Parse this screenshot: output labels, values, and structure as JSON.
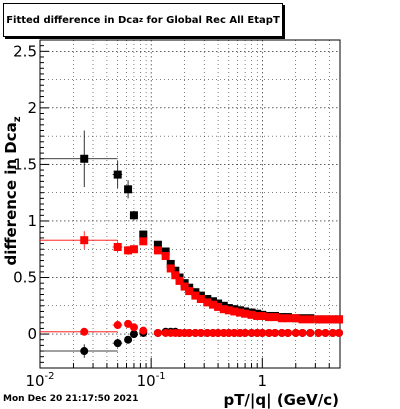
{
  "title": {
    "prefix": "Fitted difference in Dca",
    "subscript": "z",
    "suffix": " for Global Rec All EtapT"
  },
  "timestamp": "Mon Dec 20 21:17:50 2021",
  "chart_data": {
    "type": "scatter",
    "xlabel": "pT/|q| (GeV/c)",
    "ylabel": "difference in Dca",
    "ylabel_subscript": "z",
    "xscale": "log",
    "xlim": [
      0.01,
      5.0
    ],
    "ylim": [
      -0.3,
      2.6
    ],
    "grid": true,
    "xtick_labels": [
      {
        "value": 0.01,
        "label": "10",
        "sup": "-2"
      },
      {
        "value": 0.1,
        "label": "10",
        "sup": "-1"
      },
      {
        "value": 1,
        "label": "1",
        "sup": ""
      }
    ],
    "ytick_labels": [
      {
        "value": 0,
        "label": "0"
      },
      {
        "value": 0.5,
        "label": "0.5"
      },
      {
        "value": 1,
        "label": "1"
      },
      {
        "value": 1.5,
        "label": "1.5"
      },
      {
        "value": 2,
        "label": "2"
      },
      {
        "value": 2.5,
        "label": "2.5"
      }
    ],
    "series": [
      {
        "color": "#000000",
        "marker": "square",
        "x": [
          0.025,
          0.05,
          0.062,
          0.07,
          0.085,
          0.115,
          0.135,
          0.15,
          0.165,
          0.18,
          0.2,
          0.22,
          0.25,
          0.28,
          0.32,
          0.36,
          0.4,
          0.45,
          0.5,
          0.56,
          0.63,
          0.7,
          0.8,
          0.9,
          1.0,
          1.15,
          1.3,
          1.5,
          1.7,
          2.0,
          2.3,
          2.7,
          3.2,
          3.7,
          4.3,
          4.9
        ],
        "y": [
          1.55,
          1.41,
          1.28,
          1.05,
          0.88,
          0.79,
          0.73,
          0.62,
          0.56,
          0.5,
          0.45,
          0.41,
          0.37,
          0.34,
          0.31,
          0.29,
          0.27,
          0.25,
          0.23,
          0.22,
          0.21,
          0.2,
          0.19,
          0.18,
          0.17,
          0.16,
          0.16,
          0.15,
          0.15,
          0.14,
          0.14,
          0.14,
          0.13,
          0.13,
          0.13,
          0.13
        ],
        "yerr": [
          0.25,
          0.12,
          0.08,
          0.04,
          0.03,
          0.02,
          0.02,
          0.015,
          0.01,
          0.01,
          0.01,
          0.01,
          0.01,
          0.01,
          0.01,
          0.01,
          0.01,
          0.01,
          0.01,
          0.01,
          0.01,
          0.01,
          0.01,
          0.01,
          0.01,
          0.01,
          0.01,
          0.01,
          0.01,
          0.01,
          0.01,
          0.01,
          0.01,
          0.01,
          0.01,
          0.01
        ],
        "xerr_lo": [
          0.015,
          0.005,
          0.004,
          0.004,
          0.006,
          0.007,
          0.008,
          0.007,
          0.007,
          0.008,
          0.01,
          0.01,
          0.012,
          0.014,
          0.016,
          0.018,
          0.02,
          0.022,
          0.025,
          0.028,
          0.03,
          0.035,
          0.04,
          0.045,
          0.05,
          0.06,
          0.07,
          0.08,
          0.09,
          0.1,
          0.12,
          0.14,
          0.16,
          0.18,
          0.2,
          0.2
        ],
        "xerr_hi": [
          0.025,
          0.005,
          0.004,
          0.004,
          0.006,
          0.007,
          0.008,
          0.007,
          0.007,
          0.008,
          0.01,
          0.01,
          0.012,
          0.014,
          0.016,
          0.018,
          0.02,
          0.022,
          0.025,
          0.028,
          0.03,
          0.035,
          0.04,
          0.045,
          0.05,
          0.06,
          0.07,
          0.08,
          0.09,
          0.1,
          0.12,
          0.14,
          0.16,
          0.18,
          0.2,
          0.1
        ]
      },
      {
        "color": "#ff0000",
        "marker": "square",
        "x": [
          0.025,
          0.05,
          0.062,
          0.07,
          0.085,
          0.115,
          0.135,
          0.15,
          0.165,
          0.18,
          0.2,
          0.22,
          0.25,
          0.28,
          0.32,
          0.36,
          0.4,
          0.45,
          0.5,
          0.56,
          0.63,
          0.7,
          0.8,
          0.9,
          1.0,
          1.15,
          1.3,
          1.5,
          1.7,
          2.0,
          2.3,
          2.7,
          3.2,
          3.7,
          4.3,
          4.9
        ],
        "y": [
          0.83,
          0.77,
          0.74,
          0.75,
          0.82,
          0.74,
          0.69,
          0.58,
          0.52,
          0.47,
          0.42,
          0.38,
          0.34,
          0.31,
          0.28,
          0.26,
          0.24,
          0.22,
          0.21,
          0.2,
          0.19,
          0.18,
          0.17,
          0.16,
          0.16,
          0.15,
          0.15,
          0.14,
          0.14,
          0.14,
          0.13,
          0.13,
          0.13,
          0.13,
          0.13,
          0.13
        ],
        "yerr": [
          0.08,
          0.05,
          0.04,
          0.03,
          0.02,
          0.02,
          0.02,
          0.015,
          0.01,
          0.01,
          0.01,
          0.01,
          0.01,
          0.01,
          0.01,
          0.01,
          0.01,
          0.01,
          0.01,
          0.01,
          0.01,
          0.01,
          0.01,
          0.01,
          0.01,
          0.01,
          0.01,
          0.01,
          0.01,
          0.01,
          0.01,
          0.01,
          0.01,
          0.01,
          0.01,
          0.01
        ],
        "xerr_lo": [
          0.015,
          0.005,
          0.004,
          0.004,
          0.006,
          0.007,
          0.008,
          0.007,
          0.007,
          0.008,
          0.01,
          0.01,
          0.012,
          0.014,
          0.016,
          0.018,
          0.02,
          0.022,
          0.025,
          0.028,
          0.03,
          0.035,
          0.04,
          0.045,
          0.05,
          0.06,
          0.07,
          0.08,
          0.09,
          0.1,
          0.12,
          0.14,
          0.16,
          0.18,
          0.2,
          0.2
        ],
        "xerr_hi": [
          0.025,
          0.005,
          0.004,
          0.004,
          0.006,
          0.007,
          0.008,
          0.007,
          0.007,
          0.008,
          0.01,
          0.01,
          0.012,
          0.014,
          0.016,
          0.018,
          0.02,
          0.022,
          0.025,
          0.028,
          0.03,
          0.035,
          0.04,
          0.045,
          0.05,
          0.06,
          0.07,
          0.08,
          0.09,
          0.1,
          0.12,
          0.14,
          0.16,
          0.18,
          0.2,
          0.1
        ]
      },
      {
        "color": "#000000",
        "marker": "circle",
        "x": [
          0.025,
          0.05,
          0.062,
          0.07,
          0.085,
          0.115,
          0.135,
          0.15,
          0.165,
          0.18,
          0.2,
          0.22,
          0.25,
          0.28,
          0.32,
          0.36,
          0.4,
          0.45,
          0.5,
          0.56,
          0.63,
          0.7,
          0.8,
          0.9,
          1.0,
          1.15,
          1.3,
          1.5,
          1.7,
          2.0,
          2.3,
          2.7,
          3.2,
          3.7,
          4.3,
          4.9
        ],
        "y": [
          -0.15,
          -0.08,
          -0.05,
          0.0,
          0.01,
          0.01,
          0.02,
          0.02,
          0.02,
          0.01,
          0.01,
          0.01,
          0.01,
          0.01,
          0.01,
          0.01,
          0.01,
          0.01,
          0.01,
          0.01,
          0.01,
          0.01,
          0.01,
          0.01,
          0.01,
          0.01,
          0.01,
          0.01,
          0.01,
          0.01,
          0.01,
          0.01,
          0.01,
          0.01,
          0.01,
          0.01
        ],
        "yerr": [
          0.06,
          0.04,
          0.03,
          0.02,
          0.02,
          0.01,
          0.01,
          0.01,
          0.01,
          0.01,
          0.01,
          0.01,
          0.01,
          0.01,
          0.01,
          0.01,
          0.01,
          0.01,
          0.01,
          0.01,
          0.01,
          0.01,
          0.01,
          0.01,
          0.01,
          0.01,
          0.01,
          0.01,
          0.01,
          0.01,
          0.01,
          0.01,
          0.01,
          0.01,
          0.01,
          0.01
        ],
        "xerr_lo": [
          0.015,
          0.005,
          0.004,
          0.004,
          0.006,
          0.007,
          0.008,
          0.007,
          0.007,
          0.008,
          0.01,
          0.01,
          0.012,
          0.014,
          0.016,
          0.018,
          0.02,
          0.022,
          0.025,
          0.028,
          0.03,
          0.035,
          0.04,
          0.045,
          0.05,
          0.06,
          0.07,
          0.08,
          0.09,
          0.1,
          0.12,
          0.14,
          0.16,
          0.18,
          0.2,
          0.2
        ],
        "xerr_hi": [
          0.025,
          0.005,
          0.004,
          0.004,
          0.006,
          0.007,
          0.008,
          0.007,
          0.007,
          0.008,
          0.01,
          0.01,
          0.012,
          0.014,
          0.016,
          0.018,
          0.02,
          0.022,
          0.025,
          0.028,
          0.03,
          0.035,
          0.04,
          0.045,
          0.05,
          0.06,
          0.07,
          0.08,
          0.09,
          0.1,
          0.12,
          0.14,
          0.16,
          0.18,
          0.2,
          0.1
        ]
      },
      {
        "color": "#ff0000",
        "marker": "circle",
        "x": [
          0.025,
          0.05,
          0.062,
          0.07,
          0.085,
          0.115,
          0.135,
          0.15,
          0.165,
          0.18,
          0.2,
          0.22,
          0.25,
          0.28,
          0.32,
          0.36,
          0.4,
          0.45,
          0.5,
          0.56,
          0.63,
          0.7,
          0.8,
          0.9,
          1.0,
          1.15,
          1.3,
          1.5,
          1.7,
          2.0,
          2.3,
          2.7,
          3.2,
          3.7,
          4.3,
          4.9
        ],
        "y": [
          0.02,
          0.08,
          0.09,
          0.06,
          0.03,
          0.01,
          0.01,
          0.01,
          0.01,
          0.01,
          0.01,
          0.01,
          0.01,
          0.01,
          0.01,
          0.01,
          0.01,
          0.01,
          0.01,
          0.01,
          0.01,
          0.01,
          0.01,
          0.01,
          0.01,
          0.01,
          0.01,
          0.01,
          0.01,
          0.01,
          0.01,
          0.01,
          0.01,
          0.01,
          0.01,
          0.01
        ],
        "yerr": [
          0.03,
          0.02,
          0.02,
          0.02,
          0.01,
          0.01,
          0.01,
          0.01,
          0.01,
          0.01,
          0.01,
          0.01,
          0.01,
          0.01,
          0.01,
          0.01,
          0.01,
          0.01,
          0.01,
          0.01,
          0.01,
          0.01,
          0.01,
          0.01,
          0.01,
          0.01,
          0.01,
          0.01,
          0.01,
          0.01,
          0.01,
          0.01,
          0.01,
          0.01,
          0.01,
          0.01
        ],
        "xerr_lo": [
          0.015,
          0.005,
          0.004,
          0.004,
          0.006,
          0.007,
          0.008,
          0.007,
          0.007,
          0.008,
          0.01,
          0.01,
          0.012,
          0.014,
          0.016,
          0.018,
          0.02,
          0.022,
          0.025,
          0.028,
          0.03,
          0.035,
          0.04,
          0.045,
          0.05,
          0.06,
          0.07,
          0.08,
          0.09,
          0.1,
          0.12,
          0.14,
          0.16,
          0.18,
          0.2,
          0.2
        ],
        "xerr_hi": [
          0.025,
          0.005,
          0.004,
          0.004,
          0.006,
          0.007,
          0.008,
          0.007,
          0.007,
          0.008,
          0.01,
          0.01,
          0.012,
          0.014,
          0.016,
          0.018,
          0.02,
          0.022,
          0.025,
          0.028,
          0.03,
          0.035,
          0.04,
          0.045,
          0.05,
          0.06,
          0.07,
          0.08,
          0.09,
          0.1,
          0.12,
          0.14,
          0.16,
          0.18,
          0.2,
          0.1
        ]
      }
    ]
  }
}
